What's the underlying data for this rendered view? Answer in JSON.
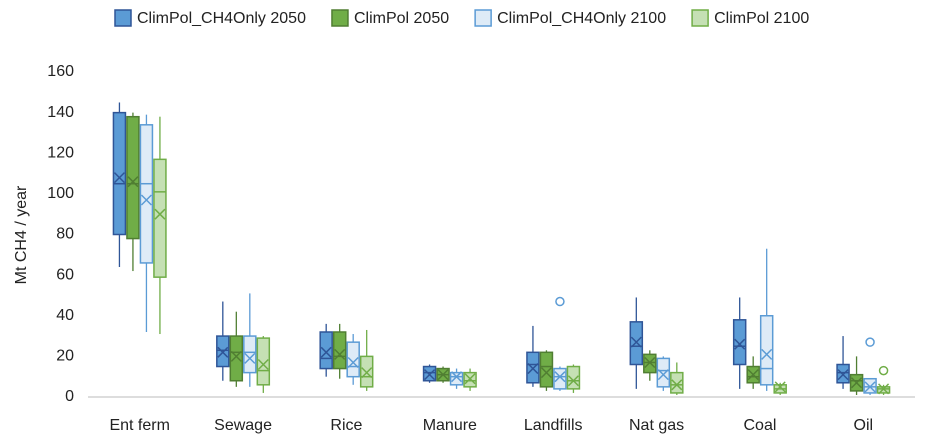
{
  "chart_data": {
    "type": "box",
    "y_label": "Mt CH4 / year",
    "categories": [
      "Ent ferm",
      "Sewage",
      "Rice",
      "Manure",
      "Landfills",
      "Nat gas",
      "Coal",
      "Oil"
    ],
    "ylim": [
      0,
      160
    ],
    "yticks": [
      0,
      20,
      40,
      60,
      80,
      100,
      120,
      140,
      160
    ],
    "grid": false,
    "legend": "top",
    "series": [
      {
        "name": "ClimPol_CH4Only 2050",
        "color": "#5b9bd5",
        "edgecolor": "#2f5597",
        "min": [
          64,
          8,
          10,
          7,
          5,
          4,
          4,
          4
        ],
        "q1": [
          80,
          15,
          14,
          8,
          7,
          16,
          16,
          7
        ],
        "median": [
          105,
          23,
          19,
          12,
          16,
          25,
          25,
          12
        ],
        "q3": [
          140,
          30,
          32,
          15,
          22,
          37,
          38,
          16
        ],
        "max": [
          145,
          47,
          36,
          16,
          35,
          49,
          49,
          30
        ],
        "mean": [
          108,
          22,
          22,
          11,
          14,
          27,
          26,
          11
        ],
        "outliers": [
          [],
          [],
          [],
          [],
          [],
          [],
          [],
          []
        ]
      },
      {
        "name": "ClimPol 2050",
        "color": "#70ad47",
        "edgecolor": "#507e32",
        "min": [
          62,
          5,
          9,
          7,
          3,
          8,
          4,
          1
        ],
        "q1": [
          78,
          8,
          14,
          8,
          5,
          12,
          7,
          3
        ],
        "median": [
          105,
          22,
          20,
          11,
          15,
          17,
          10,
          8
        ],
        "q3": [
          138,
          30,
          32,
          14,
          22,
          21,
          15,
          11
        ],
        "max": [
          140,
          42,
          36,
          15,
          23,
          23,
          20,
          20
        ],
        "mean": [
          106,
          20,
          21,
          11,
          12,
          17,
          11,
          7
        ],
        "outliers": [
          [],
          [],
          [],
          [],
          [],
          [],
          [],
          []
        ]
      },
      {
        "name": "ClimPol_CH4Only 2100",
        "color": "#deebf7",
        "edgecolor": "#5b9bd5",
        "min": [
          32,
          5,
          6,
          4,
          3,
          3,
          3,
          1
        ],
        "q1": [
          66,
          12,
          10,
          6,
          4,
          5,
          6,
          2
        ],
        "median": [
          105,
          22,
          15,
          10,
          10,
          13,
          14,
          5
        ],
        "q3": [
          134,
          30,
          27,
          12,
          14,
          19,
          40,
          9
        ],
        "max": [
          139,
          51,
          31,
          14,
          15,
          20,
          73,
          9
        ],
        "mean": [
          97,
          19,
          17,
          10,
          10,
          11,
          21,
          5
        ],
        "outliers": [
          [],
          [],
          [],
          [],
          [
            47
          ],
          [],
          [],
          [
            27
          ]
        ]
      },
      {
        "name": "ClimPol 2100",
        "color": "#c5e0b4",
        "edgecolor": "#70ad47",
        "min": [
          31,
          2,
          3,
          3,
          2,
          1,
          1,
          1
        ],
        "q1": [
          59,
          6,
          5,
          5,
          4,
          2,
          2,
          2
        ],
        "median": [
          101,
          13,
          10,
          8,
          8,
          6,
          4,
          4
        ],
        "q3": [
          117,
          29,
          20,
          12,
          15,
          12,
          6,
          5
        ],
        "max": [
          138,
          30,
          33,
          14,
          16,
          17,
          7,
          6
        ],
        "mean": [
          90,
          16,
          12,
          9,
          8,
          6,
          5,
          4
        ],
        "outliers": [
          [],
          [],
          [],
          [],
          [],
          [],
          [],
          [
            13
          ]
        ]
      }
    ]
  }
}
